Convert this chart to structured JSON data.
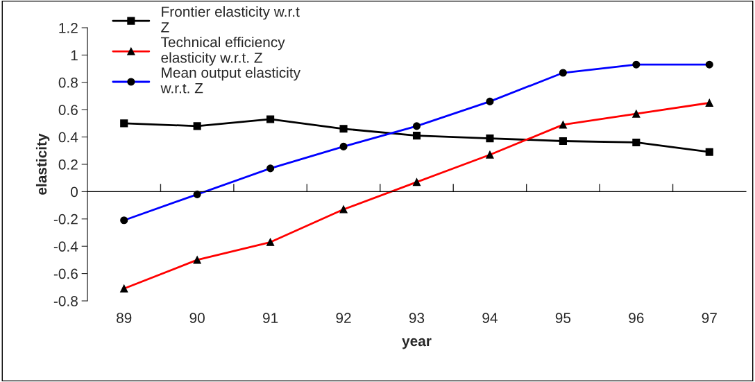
{
  "chart_data": {
    "type": "line",
    "xlabel": "year",
    "ylabel": "elasticity",
    "categories": [
      "89",
      "90",
      "91",
      "92",
      "93",
      "94",
      "95",
      "96",
      "97"
    ],
    "series": [
      {
        "name": "Frontier elasticity w.r.t\nZ",
        "color": "#000000",
        "marker": "square",
        "values": [
          0.5,
          0.48,
          0.53,
          0.46,
          0.41,
          0.39,
          0.37,
          0.36,
          0.29
        ]
      },
      {
        "name": "Technical efficiency\nelasticity w.r.t. Z",
        "color": "#ff0000",
        "marker": "triangle",
        "values": [
          -0.71,
          -0.5,
          -0.37,
          -0.13,
          0.07,
          0.27,
          0.49,
          0.57,
          0.65
        ]
      },
      {
        "name": "Mean output elasticity\nw.r.t. Z",
        "color": "#0000ff",
        "marker": "circle",
        "values": [
          -0.21,
          -0.02,
          0.17,
          0.33,
          0.48,
          0.66,
          0.87,
          0.93,
          0.93
        ]
      }
    ],
    "ylim": [
      -0.8,
      1.2
    ],
    "yticks": [
      -0.8,
      -0.6,
      -0.4,
      -0.2,
      0,
      0.2,
      0.4,
      0.6,
      0.8,
      1,
      1.2
    ],
    "legend": "top left"
  }
}
